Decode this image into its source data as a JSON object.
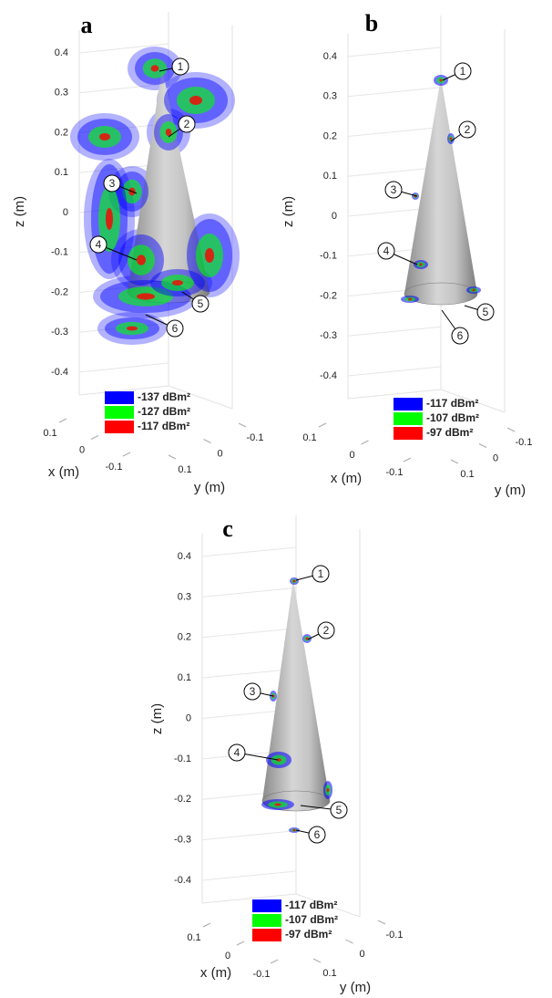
{
  "chart_data": [
    {
      "type": "isosurface3d",
      "title": "a",
      "xlabel": "x (m)",
      "ylabel": "y (m)",
      "zlabel": "z (m)",
      "xlim": [
        -0.1,
        0.1
      ],
      "xticks": [
        0.1,
        0,
        -0.1
      ],
      "ylim": [
        -0.1,
        0.1
      ],
      "yticks": [
        -0.1,
        0,
        0.1
      ],
      "zlim": [
        -0.4,
        0.4
      ],
      "zticks": [
        0.4,
        0.3,
        0.2,
        0.1,
        0,
        -0.1,
        -0.2,
        -0.3,
        -0.4
      ],
      "series": [
        {
          "name": "-137 dBm²",
          "color": "#0000ff"
        },
        {
          "name": "-127 dBm²",
          "color": "#00ff00"
        },
        {
          "name": "-117 dBm²",
          "color": "#ff0000"
        }
      ],
      "annotations": [
        "1",
        "2",
        "3",
        "4",
        "5",
        "6"
      ]
    },
    {
      "type": "isosurface3d",
      "title": "b",
      "xlabel": "x (m)",
      "ylabel": "y (m)",
      "zlabel": "z (m)",
      "xlim": [
        -0.1,
        0.1
      ],
      "xticks": [
        0.1,
        0,
        -0.1
      ],
      "ylim": [
        -0.1,
        0.1
      ],
      "yticks": [
        -0.1,
        0,
        0.1
      ],
      "zlim": [
        -0.4,
        0.4
      ],
      "zticks": [
        0.4,
        0.3,
        0.2,
        0.1,
        0,
        -0.1,
        -0.2,
        -0.3,
        -0.4
      ],
      "series": [
        {
          "name": "-117 dBm²",
          "color": "#0000ff"
        },
        {
          "name": "-107 dBm²",
          "color": "#00ff00"
        },
        {
          "name": "-97 dBm²",
          "color": "#ff0000"
        }
      ],
      "annotations": [
        "1",
        "2",
        "3",
        "4",
        "5",
        "6"
      ]
    },
    {
      "type": "isosurface3d",
      "title": "c",
      "xlabel": "x (m)",
      "ylabel": "y (m)",
      "zlabel": "z (m)",
      "xlim": [
        -0.1,
        0.1
      ],
      "xticks": [
        0.1,
        0,
        -0.1
      ],
      "ylim": [
        -0.1,
        0.1
      ],
      "yticks": [
        -0.1,
        0,
        0.1
      ],
      "zlim": [
        -0.4,
        0.4
      ],
      "zticks": [
        0.4,
        0.3,
        0.2,
        0.1,
        0,
        -0.1,
        -0.2,
        -0.3,
        -0.4
      ],
      "series": [
        {
          "name": "-117 dBm²",
          "color": "#0000ff"
        },
        {
          "name": "-107 dBm²",
          "color": "#00ff00"
        },
        {
          "name": "-97 dBm²",
          "color": "#ff0000"
        }
      ],
      "annotations": [
        "1",
        "2",
        "3",
        "4",
        "5",
        "6"
      ]
    }
  ]
}
